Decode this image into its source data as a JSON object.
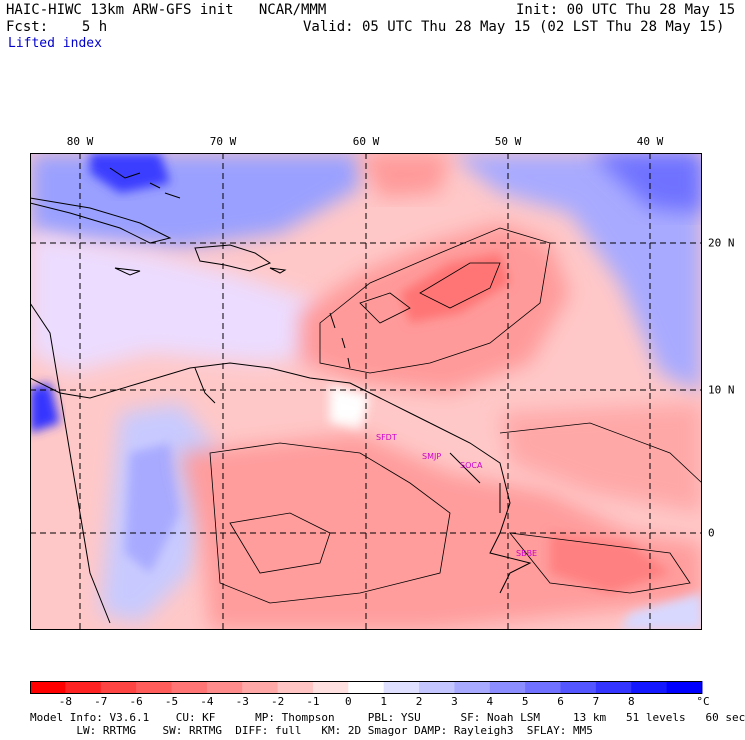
{
  "header": {
    "title": "HAIC-HIWC 13km ARW-GFS init   NCAR/MMM",
    "init": "Init: 00 UTC Thu 28 May 15",
    "fcst": "Fcst:    5 h",
    "valid": "Valid: 05 UTC Thu 28 May 15 (02 LST Thu 28 May 15)",
    "field": "Lifted index"
  },
  "map": {
    "lon_labels": [
      "80 W",
      "70 W",
      "60 W",
      "50 W",
      "40 W"
    ],
    "lat_labels": [
      "20 N",
      "10 N",
      "0"
    ],
    "stations": [
      "SFDT",
      "SMJP",
      "SOCA",
      "SBBE"
    ],
    "colors": {
      "station": "#cc00cc",
      "grid": "#000000",
      "coast": "#000000"
    }
  },
  "colorbar": {
    "labels": [
      "-8",
      "-7",
      "-6",
      "-5",
      "-4",
      "-3",
      "-2",
      "-1",
      "0",
      "1",
      "2",
      "3",
      "4",
      "5",
      "6",
      "7",
      "8"
    ],
    "unit": "°C",
    "colors": [
      "#ff0000",
      "#ff2222",
      "#ff4444",
      "#ff5c5c",
      "#ff7474",
      "#ff8c8c",
      "#ffa8a8",
      "#ffc4c4",
      "#ffe0e0",
      "#ffffff",
      "#dfe0ff",
      "#c4c6ff",
      "#a8aaff",
      "#8c8eff",
      "#7072ff",
      "#5456ff",
      "#3436ff",
      "#1418ff",
      "#0000ff"
    ]
  },
  "footer": {
    "line1": "Model Info: V3.6.1    CU: KF      MP: Thompson     PBL: YSU      SF: Noah LSM     13 km   51 levels   60 sec",
    "line2": "       LW: RRTMG    SW: RRTMG  DIFF: full   KM: 2D Smagor DAMP: Rayleigh3  SFLAY: MM5"
  }
}
